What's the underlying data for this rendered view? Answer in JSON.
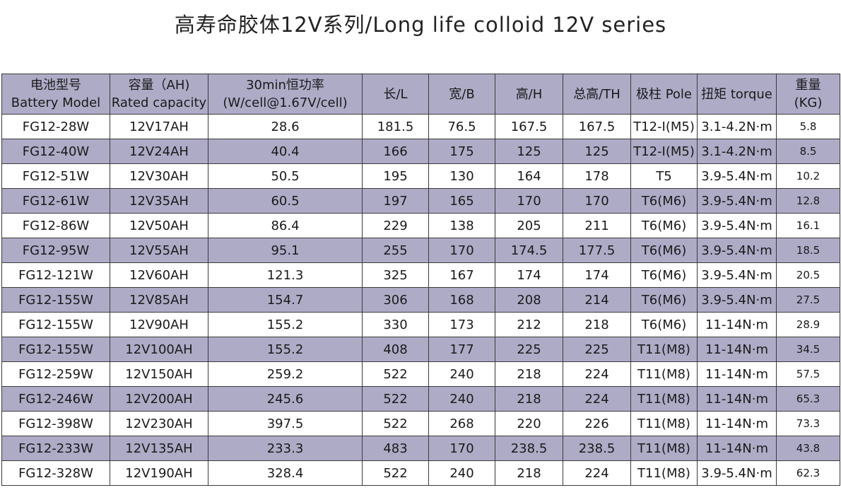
{
  "title": "高寿命胶体12V系列/Long life colloid 12V series",
  "headers": [
    [
      "电池型号",
      "Battery Model"
    ],
    [
      "容量（AH)",
      "Rated capacity"
    ],
    [
      "30min恒功率",
      "(W/cell@1.67V/cell)"
    ],
    [
      "长/L",
      ""
    ],
    [
      "宽/B",
      ""
    ],
    [
      "高/H",
      ""
    ],
    [
      "总高/TH",
      ""
    ],
    [
      "极柱 Pole",
      ""
    ],
    [
      "扭矩 torque",
      ""
    ],
    [
      "重量",
      "(KG)"
    ]
  ],
  "rows": [
    [
      "FG12-28W",
      "12V17AH",
      "28.6",
      "181.5",
      "76.5",
      "167.5",
      "167.5",
      "T12-I(M5)",
      "3.1-4.2N·m",
      "5.8"
    ],
    [
      "FG12-40W",
      "12V24AH",
      "40.4",
      "166",
      "175",
      "125",
      "125",
      "T12-I(M5)",
      "3.1-4.2N·m",
      "8.5"
    ],
    [
      "FG12-51W",
      "12V30AH",
      "50.5",
      "195",
      "130",
      "164",
      "178",
      "T5",
      "3.9-5.4N·m",
      "10.2"
    ],
    [
      "FG12-61W",
      "12V35AH",
      "60.5",
      "197",
      "165",
      "170",
      "170",
      "T6(M6)",
      "3.9-5.4N·m",
      "12.8"
    ],
    [
      "FG12-86W",
      "12V50AH",
      "86.4",
      "229",
      "138",
      "205",
      "211",
      "T6(M6)",
      "3.9-5.4N·m",
      "16.1"
    ],
    [
      "FG12-95W",
      "12V55AH",
      "95.1",
      "255",
      "170",
      "174.5",
      "177.5",
      "T6(M6)",
      "3.9-5.4N·m",
      "18.5"
    ],
    [
      "FG12-121W",
      "12V60AH",
      "121.3",
      "325",
      "167",
      "174",
      "174",
      "T6(M6)",
      "3.9-5.4N·m",
      "20.5"
    ],
    [
      "FG12-155W",
      "12V85AH",
      "154.7",
      "306",
      "168",
      "208",
      "214",
      "T6(M6)",
      "3.9-5.4N·m",
      "27.5"
    ],
    [
      "FG12-155W",
      "12V90AH",
      "155.2",
      "330",
      "173",
      "212",
      "218",
      "T6(M6)",
      "11-14N·m",
      "28.9"
    ],
    [
      "FG12-155W",
      "12V100AH",
      "155.2",
      "408",
      "177",
      "225",
      "225",
      "T11(M8)",
      "11-14N·m",
      "34.5"
    ],
    [
      "FG12-259W",
      "12V150AH",
      "259.2",
      "522",
      "240",
      "218",
      "224",
      "T11(M8)",
      "11-14N·m",
      "57.5"
    ],
    [
      "FG12-246W",
      "12V200AH",
      "245.6",
      "522",
      "240",
      "218",
      "224",
      "T11(M8)",
      "11-14N·m",
      "65.3"
    ],
    [
      "FG12-398W",
      "12V230AH",
      "397.5",
      "522",
      "268",
      "220",
      "226",
      "T11(M8)",
      "11-14N·m",
      "73.3"
    ],
    [
      "FG12-233W",
      "12V135AH",
      "233.3",
      "483",
      "170",
      "238.5",
      "238.5",
      "T11(M8)",
      "11-14N·m",
      "43.8"
    ],
    [
      "FG12-328W",
      "12V190AH",
      "328.4",
      "522",
      "240",
      "218",
      "224",
      "T11(M8)",
      "3.9-5.4N·m",
      "62.3"
    ]
  ],
  "colors": {
    "row_shade": "#aeabc7",
    "header_bg": "#aeabc7",
    "border": "#3a3a3a"
  }
}
